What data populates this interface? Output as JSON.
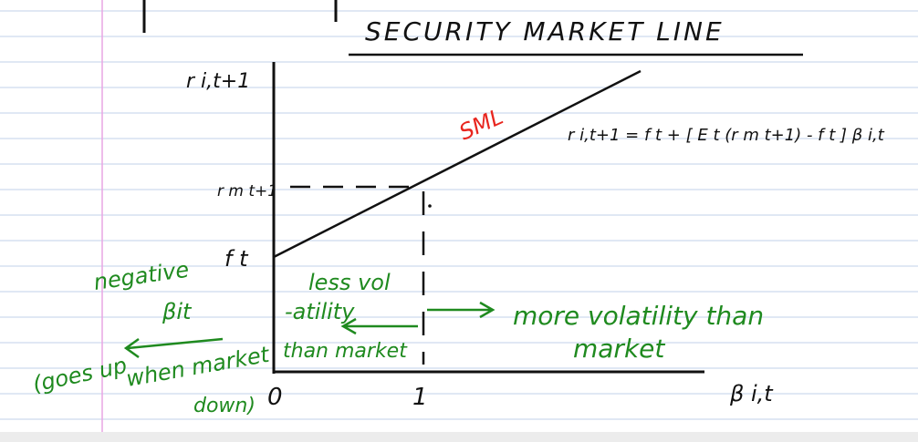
{
  "title": "SECURITY MARKET LINE",
  "y_axis_label": "r i,t+1",
  "rm_label": "r m t+1",
  "rf_label": "f t",
  "x_axis_label": "β i,t",
  "origin_label": "0",
  "x_tick_label": "1",
  "sml_label": "SML",
  "equation": "r i,t+1 = f t + [ E t (r m t+1) - f t ] β i,t",
  "less_vol_lines": [
    "less vol",
    "-atility",
    "than market"
  ],
  "more_vol_lines": [
    "more volatility than",
    "market"
  ],
  "negative_beta_lines": [
    "negative",
    "βit"
  ],
  "goes_up_lines": [
    "(goes up",
    "when market",
    "down)"
  ],
  "colors": {
    "ink": "#111111",
    "green": "#1f8a1f",
    "red": "#e8261f",
    "rule_blue": "#cdd9ee",
    "margin_pink": "#e9a6e3"
  }
}
